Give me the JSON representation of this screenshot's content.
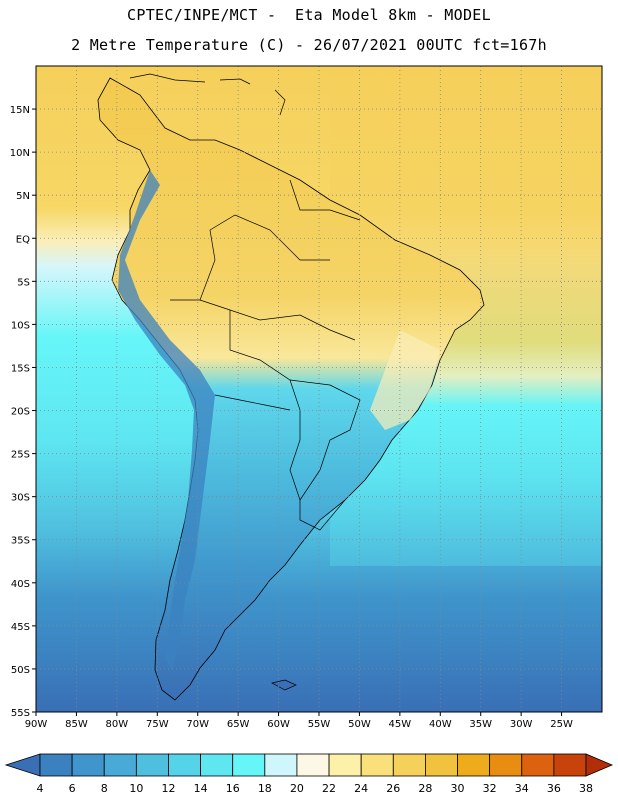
{
  "header": {
    "line1": "CPTEC/INPE/MCT -  Eta Model 8km - MODEL",
    "line2": "2 Metre Temperature (C) - 26/07/2021 00UTC fct=167h"
  },
  "map": {
    "lon_range": [
      -90,
      -20
    ],
    "lat_range": [
      -55,
      20
    ],
    "lon_ticks": [
      "90W",
      "85W",
      "80W",
      "75W",
      "70W",
      "65W",
      "60W",
      "55W",
      "50W",
      "45W",
      "40W",
      "35W",
      "30W",
      "25W"
    ],
    "lat_ticks": [
      "15N",
      "10N",
      "5N",
      "EQ",
      "5S",
      "10S",
      "15S",
      "20S",
      "25S",
      "30S",
      "35S",
      "40S",
      "45S",
      "50S",
      "55S"
    ],
    "grid": "dotted"
  },
  "colorbar": {
    "labels": [
      "4",
      "6",
      "8",
      "10",
      "12",
      "14",
      "16",
      "18",
      "20",
      "22",
      "24",
      "26",
      "28",
      "30",
      "32",
      "34",
      "36",
      "38"
    ],
    "colors": [
      "#3a6fb5",
      "#3b81c0",
      "#3f95cc",
      "#48aad6",
      "#4fbfdf",
      "#55d3e8",
      "#5ee6f1",
      "#66f6f8",
      "#cff7fb",
      "#fdf8e6",
      "#fdf0a8",
      "#f9e07a",
      "#f5d05a",
      "#f1c23e",
      "#eeab1c",
      "#e88d12",
      "#dc6210",
      "#c8420c",
      "#b22e08"
    ]
  }
}
